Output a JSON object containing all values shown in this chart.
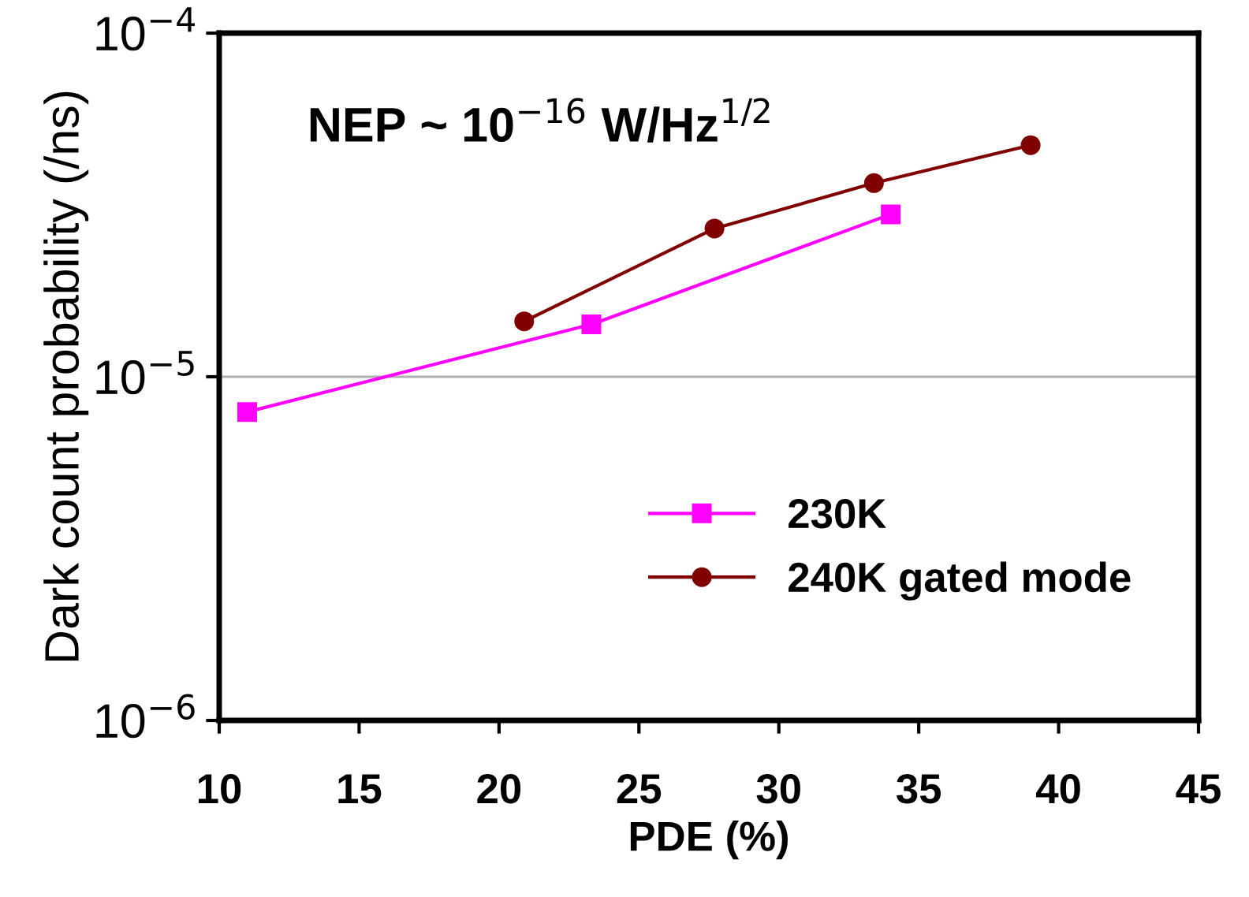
{
  "chart_data": {
    "type": "line",
    "xlabel": "PDE (%)",
    "ylabel": "Dark count probability (/ns)",
    "annotations": [
      "NEP ~ 10$^{−16}$ W/Hz$^{1/2}$"
    ],
    "series": [
      {
        "name": "230K",
        "color": "#ff00ff",
        "marker": "square",
        "x": [
          11.0,
          23.3,
          34.0
        ],
        "values": [
          7.9e-06,
          1.42e-05,
          2.97e-05
        ]
      },
      {
        "name": "240K gated mode",
        "color": "#800000",
        "marker": "circle",
        "x": [
          20.9,
          27.7,
          33.4,
          39.0
        ],
        "values": [
          1.45e-05,
          2.7e-05,
          3.66e-05,
          4.72e-05
        ]
      }
    ],
    "log": "y",
    "xlim": [
      10,
      45
    ],
    "xticks": [
      10,
      15,
      20,
      25,
      30,
      35,
      40,
      45
    ],
    "ylim": [
      1e-06,
      0.0001
    ],
    "yticks": [
      {
        "value": 1e-06,
        "label": "10$^{−6}$"
      },
      {
        "value": 1e-05,
        "label": "10$^{−5}$"
      },
      {
        "value": 0.0001,
        "label": "10$^{−4}$"
      }
    ],
    "grid": "y",
    "legend": "lower right",
    "line_style": "solid"
  }
}
